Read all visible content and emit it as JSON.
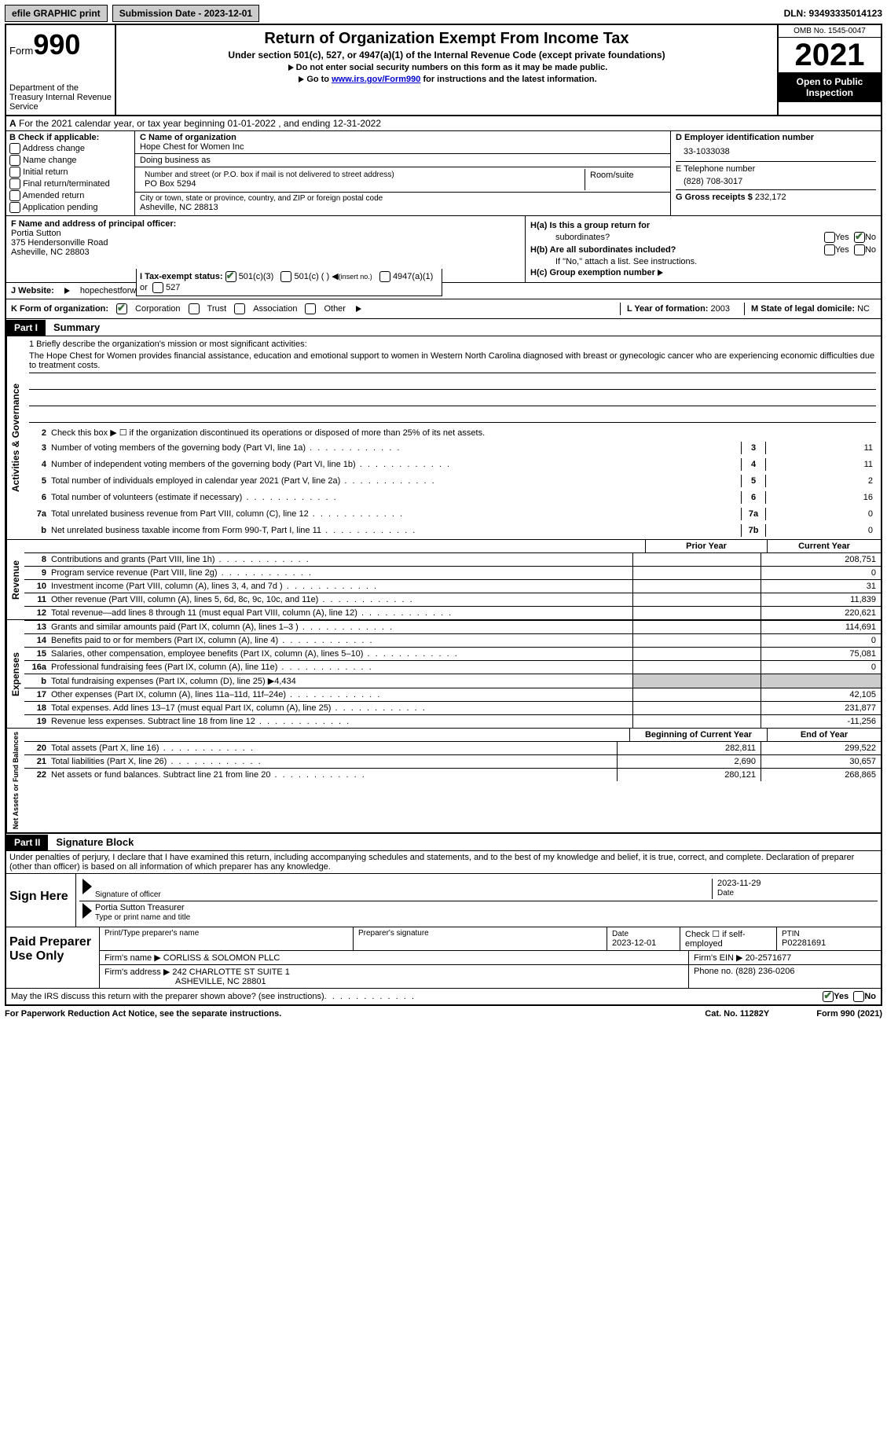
{
  "topbar": {
    "efile": "efile GRAPHIC print",
    "submission_label": "Submission Date - 2023-12-01",
    "dln": "DLN: 93493335014123"
  },
  "header": {
    "form_word": "Form",
    "form_num": "990",
    "dept": "Department of the Treasury Internal Revenue Service",
    "title": "Return of Organization Exempt From Income Tax",
    "subtitle": "Under section 501(c), 527, or 4947(a)(1) of the Internal Revenue Code (except private foundations)",
    "line1": "Do not enter social security numbers on this form as it may be made public.",
    "line2_pre": "Go to ",
    "line2_link": "www.irs.gov/Form990",
    "line2_post": " for instructions and the latest information.",
    "omb": "OMB No. 1545-0047",
    "year": "2021",
    "open": "Open to Public Inspection"
  },
  "a": {
    "text": "For the 2021 calendar year, or tax year beginning 01-01-2022  , and ending 12-31-2022"
  },
  "b": {
    "title": "B Check if applicable:",
    "opts": [
      "Address change",
      "Name change",
      "Initial return",
      "Final return/terminated",
      "Amended return",
      "Application pending"
    ]
  },
  "c": {
    "name_label": "C Name of organization",
    "name": "Hope Chest for Women Inc",
    "dba_label": "Doing business as",
    "addr_label": "Number and street (or P.O. box if mail is not delivered to street address)",
    "room_label": "Room/suite",
    "addr": "PO Box 5294",
    "city_label": "City or town, state or province, country, and ZIP or foreign postal code",
    "city": "Asheville, NC  28813"
  },
  "d": {
    "label": "D Employer identification number",
    "val": "33-1033038"
  },
  "e": {
    "label": "E Telephone number",
    "val": "(828) 708-3017"
  },
  "g": {
    "label": "G Gross receipts $",
    "val": "232,172"
  },
  "f": {
    "label": "F  Name and address of principal officer:",
    "name": "Portia Sutton",
    "addr": "375 Hendersonville Road",
    "city": "Asheville, NC  28803"
  },
  "h": {
    "a1": "H(a)  Is this a group return for",
    "a2": "subordinates?",
    "b": "H(b)  Are all subordinates included?",
    "b_note": "If \"No,\" attach a list. See instructions.",
    "c": "H(c)  Group exemption number",
    "yes": "Yes",
    "no": "No"
  },
  "i": {
    "label": "I  Tax-exempt status:",
    "o1": "501(c)(3)",
    "o2": "501(c) (  )",
    "o2b": "(insert no.)",
    "o3": "4947(a)(1) or",
    "o4": "527"
  },
  "j": {
    "label": "J  Website:",
    "val": "hopechestforwomen.org"
  },
  "k": {
    "label": "K Form of organization:",
    "o1": "Corporation",
    "o2": "Trust",
    "o3": "Association",
    "o4": "Other"
  },
  "l": {
    "label": "L Year of formation:",
    "val": "2003"
  },
  "m": {
    "label": "M State of legal domicile:",
    "val": "NC"
  },
  "part1": {
    "tab": "Part I",
    "title": "Summary",
    "mission_label": "1  Briefly describe the organization's mission or most significant activities:",
    "mission": "The Hope Chest for Women provides financial assistance, education and emotional support to women in Western North Carolina diagnosed with breast or gynecologic cancer who are experiencing economic difficulties due to treatment costs.",
    "line2": "Check this box ▶ ☐  if the organization discontinued its operations or disposed of more than 25% of its net assets.",
    "lines": [
      {
        "n": "3",
        "t": "Number of voting members of the governing body (Part VI, line 1a)",
        "box": "3",
        "v": "11"
      },
      {
        "n": "4",
        "t": "Number of independent voting members of the governing body (Part VI, line 1b)",
        "box": "4",
        "v": "11"
      },
      {
        "n": "5",
        "t": "Total number of individuals employed in calendar year 2021 (Part V, line 2a)",
        "box": "5",
        "v": "2"
      },
      {
        "n": "6",
        "t": "Total number of volunteers (estimate if necessary)",
        "box": "6",
        "v": "16"
      },
      {
        "n": "7a",
        "t": "Total unrelated business revenue from Part VIII, column (C), line 12",
        "box": "7a",
        "v": "0"
      },
      {
        "n": "b",
        "t": "Net unrelated business taxable income from Form 990-T, Part I, line 11",
        "box": "7b",
        "v": "0"
      }
    ],
    "prior": "Prior Year",
    "current": "Current Year",
    "revenue": [
      {
        "n": "8",
        "t": "Contributions and grants (Part VIII, line 1h)",
        "cv": "208,751"
      },
      {
        "n": "9",
        "t": "Program service revenue (Part VIII, line 2g)",
        "cv": "0"
      },
      {
        "n": "10",
        "t": "Investment income (Part VIII, column (A), lines 3, 4, and 7d )",
        "cv": "31"
      },
      {
        "n": "11",
        "t": "Other revenue (Part VIII, column (A), lines 5, 6d, 8c, 9c, 10c, and 11e)",
        "cv": "11,839"
      },
      {
        "n": "12",
        "t": "Total revenue—add lines 8 through 11 (must equal Part VIII, column (A), line 12)",
        "cv": "220,621"
      }
    ],
    "expenses": [
      {
        "n": "13",
        "t": "Grants and similar amounts paid (Part IX, column (A), lines 1–3 )",
        "cv": "114,691"
      },
      {
        "n": "14",
        "t": "Benefits paid to or for members (Part IX, column (A), line 4)",
        "cv": "0"
      },
      {
        "n": "15",
        "t": "Salaries, other compensation, employee benefits (Part IX, column (A), lines 5–10)",
        "cv": "75,081"
      },
      {
        "n": "16a",
        "t": "Professional fundraising fees (Part IX, column (A), line 11e)",
        "cv": "0"
      },
      {
        "n": "b",
        "t": "Total fundraising expenses (Part IX, column (D), line 25) ▶4,434",
        "shaded": true
      },
      {
        "n": "17",
        "t": "Other expenses (Part IX, column (A), lines 11a–11d, 11f–24e)",
        "cv": "42,105"
      },
      {
        "n": "18",
        "t": "Total expenses. Add lines 13–17 (must equal Part IX, column (A), line 25)",
        "cv": "231,877"
      },
      {
        "n": "19",
        "t": "Revenue less expenses. Subtract line 18 from line 12",
        "cv": "-11,256"
      }
    ],
    "assets_hdr_p": "Beginning of Current Year",
    "assets_hdr_c": "End of Year",
    "assets": [
      {
        "n": "20",
        "t": "Total assets (Part X, line 16)",
        "pv": "282,811",
        "cv": "299,522"
      },
      {
        "n": "21",
        "t": "Total liabilities (Part X, line 26)",
        "pv": "2,690",
        "cv": "30,657"
      },
      {
        "n": "22",
        "t": "Net assets or fund balances. Subtract line 21 from line 20",
        "pv": "280,121",
        "cv": "268,865"
      }
    ],
    "side1": "Activities & Governance",
    "side2": "Revenue",
    "side3": "Expenses",
    "side4": "Net Assets or Fund Balances"
  },
  "part2": {
    "tab": "Part II",
    "title": "Signature Block",
    "perjury": "Under penalties of perjury, I declare that I have examined this return, including accompanying schedules and statements, and to the best of my knowledge and belief, it is true, correct, and complete. Declaration of preparer (other than officer) is based on all information of which preparer has any knowledge.",
    "sign_here": "Sign Here",
    "sig_officer": "Signature of officer",
    "sig_date": "2023-11-29",
    "date_label": "Date",
    "officer_name": "Portia Sutton  Treasurer",
    "officer_type": "Type or print name and title",
    "paid": "Paid Preparer Use Only",
    "prep_name_label": "Print/Type preparer's name",
    "prep_sig_label": "Preparer's signature",
    "prep_date_label": "Date",
    "prep_date": "2023-12-01",
    "prep_check": "Check ☐ if self-employed",
    "ptin_label": "PTIN",
    "ptin": "P02281691",
    "firm_name_label": "Firm's name  ▶",
    "firm_name": "CORLISS & SOLOMON PLLC",
    "firm_ein_label": "Firm's EIN ▶",
    "firm_ein": "20-2571677",
    "firm_addr_label": "Firm's address ▶",
    "firm_addr": "242 CHARLOTTE ST SUITE 1",
    "firm_city": "ASHEVILLE, NC  28801",
    "phone_label": "Phone no.",
    "phone": "(828) 236-0206",
    "discuss": "May the IRS discuss this return with the preparer shown above? (see instructions)",
    "yes": "Yes",
    "no": "No"
  },
  "footer": {
    "pra": "For Paperwork Reduction Act Notice, see the separate instructions.",
    "cat": "Cat. No. 11282Y",
    "form": "Form 990 (2021)"
  }
}
